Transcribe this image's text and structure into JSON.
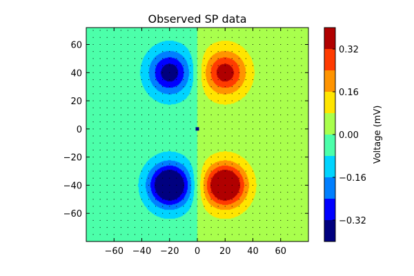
{
  "chart_data": {
    "type": "heatmap",
    "subtype": "filled-contour",
    "title": "Observed SP data",
    "xlabel": "",
    "ylabel": "",
    "xlim": [
      -80,
      80
    ],
    "ylim": [
      -80,
      72
    ],
    "xticks": [
      -60,
      -40,
      -20,
      0,
      20,
      40,
      60
    ],
    "yticks": [
      -60,
      -40,
      -20,
      0,
      20,
      40,
      60
    ],
    "grid": false,
    "observation_points": {
      "spacing": 5,
      "marker": "dot"
    },
    "point_source_marker": {
      "x": 0,
      "y": 0
    },
    "sources": [
      {
        "x": -20,
        "y": -40,
        "amplitude": -0.44,
        "sx": 10,
        "sy": 10
      },
      {
        "x": 20,
        "y": -40,
        "amplitude": 0.44,
        "sx": 10,
        "sy": 10
      },
      {
        "x": -20,
        "y": 40,
        "amplitude": -0.29,
        "sx": 10,
        "sy": 10
      },
      {
        "x": 20,
        "y": 40,
        "amplitude": 0.29,
        "sx": 10,
        "sy": 10
      }
    ],
    "broad_field": {
      "scale_x": 20,
      "sy": 26,
      "amplitude": 0.085
    },
    "levels": [
      -0.4,
      -0.32,
      -0.24,
      -0.16,
      -0.08,
      0.0,
      0.08,
      0.16,
      0.24,
      0.32,
      0.4
    ],
    "level_colors": [
      "#00007f",
      "#0000ff",
      "#007fff",
      "#00d4ff",
      "#4cffaa",
      "#a9ff4d",
      "#ffe500",
      "#ff9400",
      "#ff3b00",
      "#b00000"
    ],
    "colorbar": {
      "label": "Voltage (mV)",
      "ticks": [
        {
          "value": 0.32,
          "label": "0.32"
        },
        {
          "value": 0.16,
          "label": "0.16"
        },
        {
          "value": 0.0,
          "label": "0.00"
        },
        {
          "value": -0.16,
          "label": "−0.16"
        },
        {
          "value": -0.32,
          "label": "−0.32"
        }
      ]
    },
    "x_tick_labels": [
      "−60",
      "−40",
      "−20",
      "0",
      "20",
      "40",
      "60"
    ],
    "y_tick_labels": [
      "−60",
      "−40",
      "−20",
      "0",
      "20",
      "40",
      "60"
    ]
  }
}
